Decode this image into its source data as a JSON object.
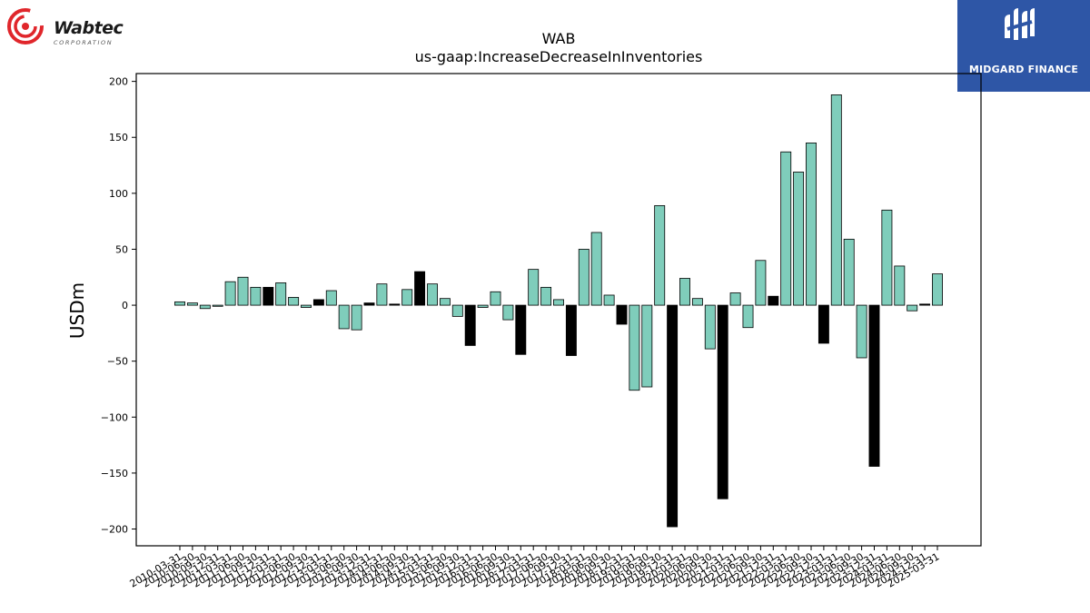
{
  "header": {
    "left_logo": {
      "name": "Wabtec",
      "subtitle": "CORPORATION"
    },
    "right_logo": {
      "name": "MIDGARD FINANCE"
    }
  },
  "chart_data": {
    "type": "bar",
    "title": "WAB",
    "subtitle": "us-gaap:IncreaseDecreaseInInventories",
    "xlabel": "",
    "ylabel": "USDm",
    "ylim": [
      -215,
      207
    ],
    "yticks": [
      -200,
      -150,
      -100,
      -50,
      0,
      50,
      100,
      150,
      200
    ],
    "bar_fill_positive": "#7fcdbb",
    "bar_fill_highlight": "#000000",
    "bar_edge": "#000000",
    "categories": [
      "2010-03-31",
      "2010-06-30",
      "2010-09-30",
      "2010-12-31",
      "2011-03-31",
      "2011-06-30",
      "2011-09-30",
      "2011-12-31",
      "2012-03-31",
      "2012-06-30",
      "2012-09-30",
      "2012-12-31",
      "2013-03-31",
      "2013-06-30",
      "2013-09-30",
      "2013-12-31",
      "2014-03-31",
      "2014-06-30",
      "2014-09-30",
      "2014-12-31",
      "2015-03-31",
      "2015-06-30",
      "2015-09-30",
      "2015-12-31",
      "2016-03-31",
      "2016-06-30",
      "2016-09-30",
      "2016-12-31",
      "2017-03-31",
      "2017-06-30",
      "2017-09-30",
      "2017-12-31",
      "2018-03-31",
      "2018-06-30",
      "2018-09-30",
      "2018-12-31",
      "2019-03-31",
      "2019-06-30",
      "2019-09-30",
      "2019-12-31",
      "2020-03-31",
      "2020-06-30",
      "2020-09-30",
      "2020-12-31",
      "2021-03-31",
      "2021-06-30",
      "2021-09-30",
      "2021-12-31",
      "2022-03-31",
      "2022-06-30",
      "2022-09-30",
      "2022-12-31",
      "2023-03-31",
      "2023-06-30",
      "2023-09-30",
      "2023-12-31",
      "2024-03-31",
      "2024-06-30",
      "2024-09-30",
      "2024-12-31",
      "2025-03-31"
    ],
    "values": [
      3,
      2,
      -3,
      -1,
      21,
      25,
      16,
      16,
      20,
      7,
      -2,
      5,
      13,
      -21,
      -22,
      2,
      19,
      1,
      14,
      30,
      19,
      6,
      -10,
      -36,
      -2,
      12,
      -13,
      -44,
      32,
      16,
      5,
      -45,
      50,
      65,
      9,
      -17,
      -76,
      -73,
      89,
      -198,
      24,
      6,
      -39,
      -173,
      11,
      -20,
      40,
      8,
      137,
      119,
      145,
      -34,
      188,
      59,
      -47,
      -144,
      85,
      35,
      -5,
      1,
      28
    ],
    "highlight": [
      false,
      false,
      false,
      false,
      false,
      false,
      false,
      true,
      false,
      false,
      false,
      true,
      false,
      false,
      false,
      true,
      false,
      true,
      false,
      true,
      false,
      false,
      false,
      true,
      false,
      false,
      false,
      true,
      false,
      false,
      false,
      true,
      false,
      false,
      false,
      true,
      false,
      false,
      false,
      true,
      false,
      false,
      false,
      true,
      false,
      false,
      false,
      true,
      false,
      false,
      false,
      true,
      false,
      false,
      false,
      true,
      false,
      false,
      false,
      true,
      false
    ],
    "tick_labels_shown": [
      "2010-03-31",
      "2025-03-31"
    ]
  }
}
